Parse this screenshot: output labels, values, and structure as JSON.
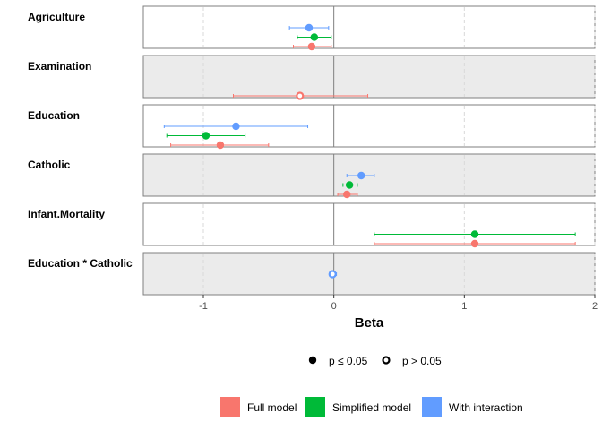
{
  "chart_data": {
    "type": "forest",
    "xlabel": "Beta",
    "xlim": [
      -1.46,
      2.0
    ],
    "x_ticks": [
      -1,
      0,
      1,
      2
    ],
    "reference_line": 0,
    "grid": "vertical dashed",
    "rows": [
      "Agriculture",
      "Examination",
      "Education",
      "Catholic",
      "Infant.Mortality",
      "Education * Catholic"
    ],
    "series": [
      {
        "name": "Full model",
        "color": "#F8766D",
        "points": [
          {
            "row": "Agriculture",
            "estimate": -0.17,
            "low": -0.31,
            "high": -0.02,
            "significant": true
          },
          {
            "row": "Examination",
            "estimate": -0.26,
            "low": -0.77,
            "high": 0.26,
            "significant": false
          },
          {
            "row": "Education",
            "estimate": -0.87,
            "low": -1.25,
            "high": -0.5,
            "significant": true
          },
          {
            "row": "Catholic",
            "estimate": 0.1,
            "low": 0.03,
            "high": 0.18,
            "significant": true
          },
          {
            "row": "Infant.Mortality",
            "estimate": 1.08,
            "low": 0.31,
            "high": 1.85,
            "significant": true
          }
        ]
      },
      {
        "name": "Simplified model",
        "color": "#00BA38",
        "points": [
          {
            "row": "Agriculture",
            "estimate": -0.15,
            "low": -0.28,
            "high": -0.02,
            "significant": true
          },
          {
            "row": "Education",
            "estimate": -0.98,
            "low": -1.28,
            "high": -0.68,
            "significant": true
          },
          {
            "row": "Catholic",
            "estimate": 0.12,
            "low": 0.07,
            "high": 0.18,
            "significant": true
          },
          {
            "row": "Infant.Mortality",
            "estimate": 1.08,
            "low": 0.31,
            "high": 1.85,
            "significant": true
          }
        ]
      },
      {
        "name": "With interaction",
        "color": "#619CFF",
        "points": [
          {
            "row": "Agriculture",
            "estimate": -0.19,
            "low": -0.34,
            "high": -0.04,
            "significant": true
          },
          {
            "row": "Education",
            "estimate": -0.75,
            "low": -1.3,
            "high": -0.2,
            "significant": true
          },
          {
            "row": "Catholic",
            "estimate": 0.21,
            "low": 0.1,
            "high": 0.31,
            "significant": true
          },
          {
            "row": "Education * Catholic",
            "estimate": -0.01,
            "low": -0.03,
            "high": 0.02,
            "significant": false
          }
        ]
      }
    ],
    "shape_legend": [
      {
        "label": "p ≤ 0.05",
        "significant": true
      },
      {
        "label": "p > 0.05",
        "significant": false
      }
    ]
  }
}
